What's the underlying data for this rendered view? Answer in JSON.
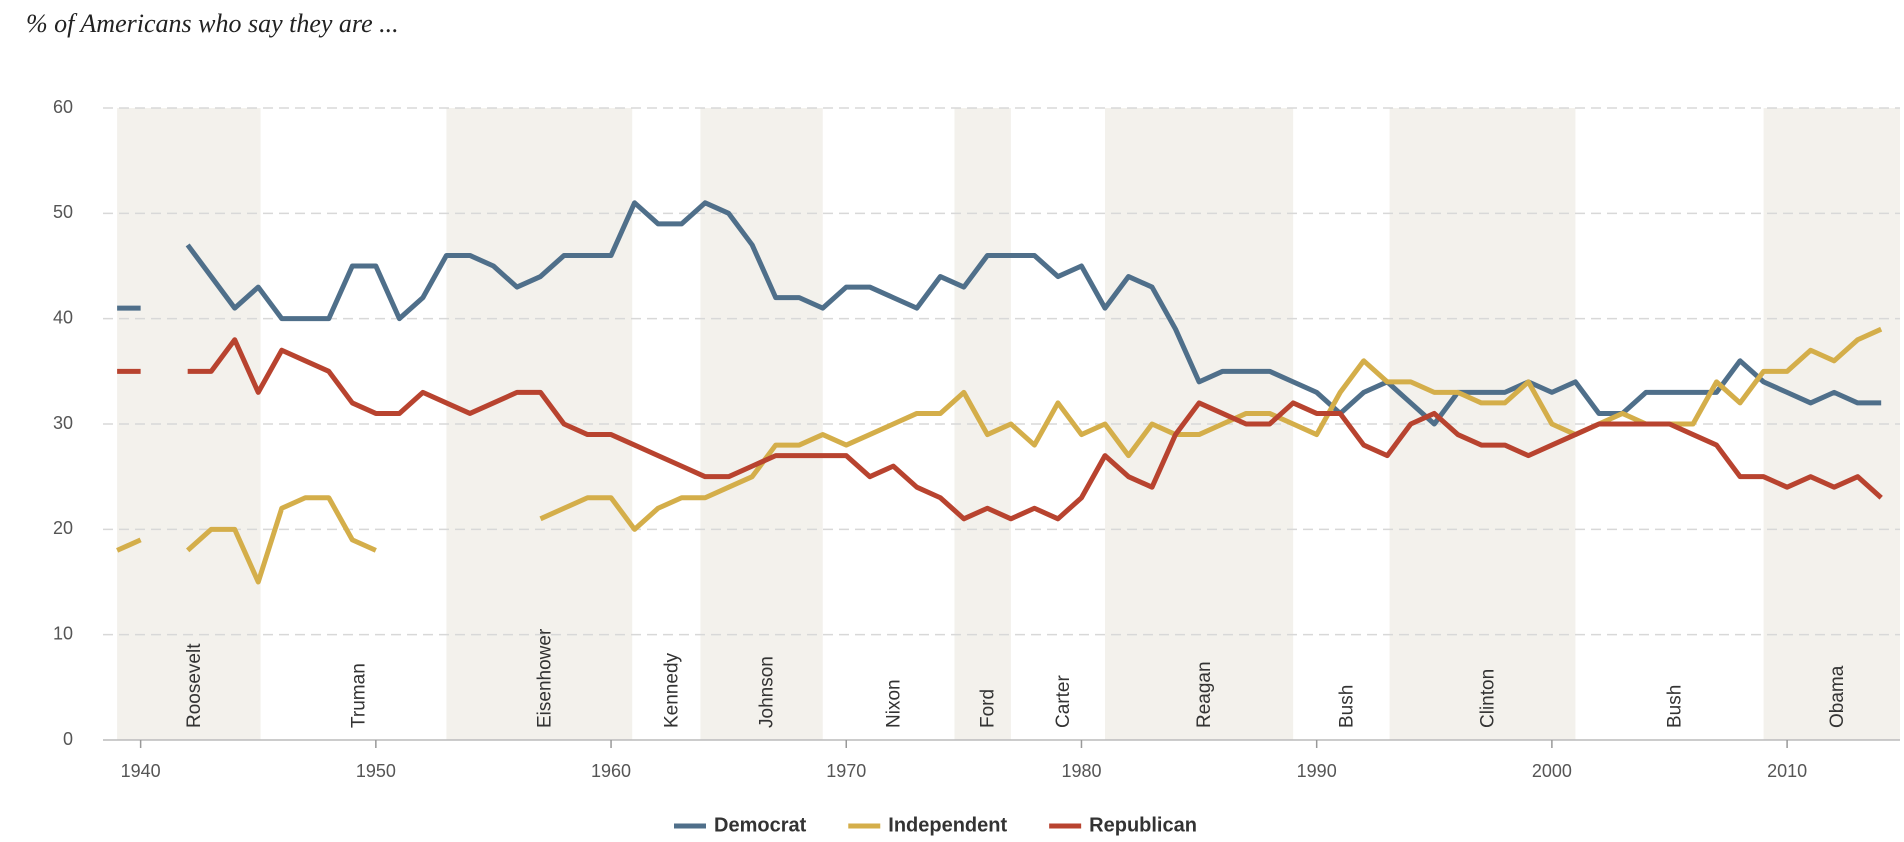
{
  "chart_data": {
    "type": "line",
    "title": "% of Americans who say they are ...",
    "x": [
      1939,
      1940,
      1941,
      1942,
      1943,
      1944,
      1945,
      1946,
      1947,
      1948,
      1949,
      1950,
      1951,
      1952,
      1953,
      1954,
      1955,
      1956,
      1957,
      1958,
      1959,
      1960,
      1961,
      1962,
      1963,
      1964,
      1965,
      1966,
      1967,
      1968,
      1969,
      1970,
      1971,
      1972,
      1973,
      1974,
      1975,
      1976,
      1977,
      1978,
      1979,
      1980,
      1981,
      1982,
      1983,
      1984,
      1985,
      1986,
      1987,
      1988,
      1989,
      1990,
      1991,
      1992,
      1993,
      1994,
      1995,
      1996,
      1997,
      1998,
      1999,
      2000,
      2001,
      2002,
      2003,
      2004,
      2005,
      2006,
      2007,
      2008,
      2009,
      2010,
      2011,
      2012,
      2013,
      2014
    ],
    "series": [
      {
        "name": "Democrat",
        "color": "#4f6f8a",
        "values": [
          41,
          41,
          null,
          47,
          44,
          41,
          43,
          40,
          40,
          40,
          45,
          45,
          40,
          42,
          46,
          46,
          45,
          43,
          44,
          46,
          46,
          46,
          51,
          49,
          49,
          51,
          50,
          47,
          42,
          42,
          41,
          43,
          43,
          42,
          41,
          44,
          43,
          46,
          46,
          46,
          44,
          45,
          41,
          44,
          43,
          39,
          34,
          35,
          35,
          35,
          34,
          33,
          31,
          33,
          34,
          32,
          30,
          33,
          33,
          33,
          34,
          33,
          34,
          31,
          31,
          33,
          33,
          33,
          33,
          36,
          34,
          33,
          32,
          33,
          32,
          32
        ]
      },
      {
        "name": "Independent",
        "color": "#d4ae4a",
        "values": [
          18,
          19,
          null,
          18,
          20,
          20,
          15,
          22,
          23,
          23,
          19,
          18,
          null,
          null,
          null,
          null,
          null,
          null,
          21,
          22,
          23,
          23,
          20,
          22,
          23,
          23,
          24,
          25,
          28,
          28,
          29,
          28,
          29,
          30,
          31,
          31,
          33,
          29,
          30,
          28,
          32,
          29,
          30,
          27,
          30,
          29,
          29,
          30,
          31,
          31,
          30,
          29,
          33,
          36,
          34,
          34,
          33,
          33,
          32,
          32,
          34,
          30,
          29,
          30,
          31,
          30,
          30,
          30,
          34,
          32,
          35,
          35,
          37,
          36,
          38,
          39
        ]
      },
      {
        "name": "Republican",
        "color": "#b8432f",
        "values": [
          35,
          35,
          null,
          35,
          35,
          38,
          33,
          37,
          36,
          35,
          32,
          31,
          31,
          33,
          32,
          31,
          32,
          33,
          33,
          30,
          29,
          29,
          28,
          27,
          26,
          25,
          25,
          26,
          27,
          27,
          27,
          27,
          25,
          26,
          24,
          23,
          21,
          22,
          21,
          22,
          21,
          23,
          27,
          25,
          24,
          29,
          32,
          31,
          30,
          30,
          32,
          31,
          31,
          28,
          27,
          30,
          31,
          29,
          28,
          28,
          27,
          28,
          29,
          30,
          30,
          30,
          30,
          29,
          28,
          25,
          25,
          24,
          25,
          24,
          25,
          23
        ]
      }
    ],
    "presidents": [
      {
        "name": "Roosevelt",
        "start": 1939,
        "end": 1945.1
      },
      {
        "name": "Truman",
        "start": 1945.1,
        "end": 1953
      },
      {
        "name": "Eisenhower",
        "start": 1953,
        "end": 1960.9
      },
      {
        "name": "Kennedy",
        "start": 1960.9,
        "end": 1963.8
      },
      {
        "name": "Johnson",
        "start": 1963.8,
        "end": 1969
      },
      {
        "name": "Nixon",
        "start": 1969,
        "end": 1974.6
      },
      {
        "name": "Ford",
        "start": 1974.6,
        "end": 1977
      },
      {
        "name": "Carter",
        "start": 1977,
        "end": 1981
      },
      {
        "name": "Reagan",
        "start": 1981,
        "end": 1989
      },
      {
        "name": "Bush",
        "start": 1989,
        "end": 1993.1
      },
      {
        "name": "Clinton",
        "start": 1993.1,
        "end": 2001
      },
      {
        "name": "Bush",
        "start": 2001,
        "end": 2009
      },
      {
        "name": "Obama",
        "start": 2009,
        "end": 2014.8
      }
    ],
    "xlim": [
      1938.4,
      2014.8
    ],
    "xticks": [
      1940,
      1950,
      1960,
      1970,
      1980,
      1990,
      2000,
      2010
    ],
    "ylim": [
      0,
      60
    ],
    "yticks": [
      0,
      10,
      20,
      30,
      40,
      50,
      60
    ],
    "grid": true
  }
}
